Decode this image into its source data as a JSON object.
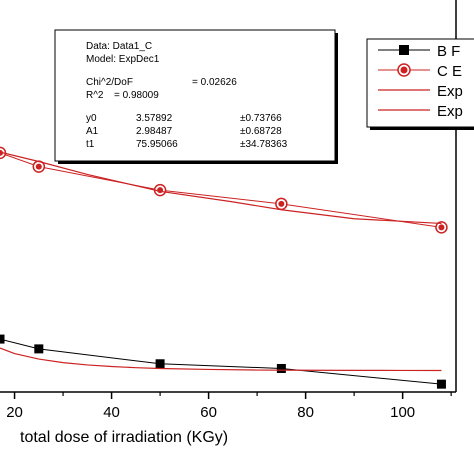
{
  "chart_data": {
    "type": "line",
    "xlabel": "total dose of irradiation (KGy)",
    "ylabel": "",
    "xlim": [
      17,
      111
    ],
    "x_ticks": [
      "20",
      "40",
      "60",
      "80",
      "100"
    ],
    "x_tick_values": [
      20,
      40,
      60,
      80,
      100
    ],
    "ylim": [
      0,
      10
    ],
    "series": [
      {
        "name": "B F",
        "color": "#000000",
        "marker": "square",
        "x": [
          17,
          25,
          50,
          75,
          108
        ],
        "y": [
          1.35,
          1.1,
          0.72,
          0.6,
          0.2
        ]
      },
      {
        "name": "C E",
        "color": "#cc2222",
        "marker": "circle",
        "x": [
          17,
          25,
          50,
          75,
          108
        ],
        "y": [
          6.1,
          5.75,
          5.15,
          4.8,
          4.2
        ]
      },
      {
        "name": "Exp",
        "color": "#cc2222",
        "marker": "none",
        "x": [
          17,
          20,
          25,
          30,
          35,
          40,
          45,
          50,
          60,
          70,
          80,
          90,
          100,
          108
        ],
        "y": [
          1.12,
          0.98,
          0.84,
          0.75,
          0.69,
          0.65,
          0.62,
          0.6,
          0.575,
          0.56,
          0.555,
          0.552,
          0.55,
          0.549
        ]
      },
      {
        "name": "Exp",
        "color": "#cc2222",
        "marker": "none",
        "x": [
          17,
          25,
          35,
          50,
          65,
          75,
          90,
          108
        ],
        "y": [
          6.12,
          5.88,
          5.55,
          5.12,
          4.85,
          4.65,
          4.42,
          4.3
        ]
      }
    ],
    "legend": {
      "placement": "top-right",
      "labels": [
        "B F",
        "C E",
        "Exp",
        "Exp"
      ]
    },
    "fit_box": {
      "data_line": "Data: Data1_C",
      "model_line": "Model: ExpDec1",
      "chi_label": "Chi^2/DoF",
      "chi_value": "= 0.02626",
      "r2_label": "R^2",
      "r2_value": "=  0.98009",
      "params": [
        {
          "name": "y0",
          "value": "3.57892",
          "error": "±0.73766"
        },
        {
          "name": "A1",
          "value": "2.98487",
          "error": "±0.68728"
        },
        {
          "name": "t1",
          "value": "75.95066",
          "error": "±34.78363"
        }
      ]
    }
  }
}
